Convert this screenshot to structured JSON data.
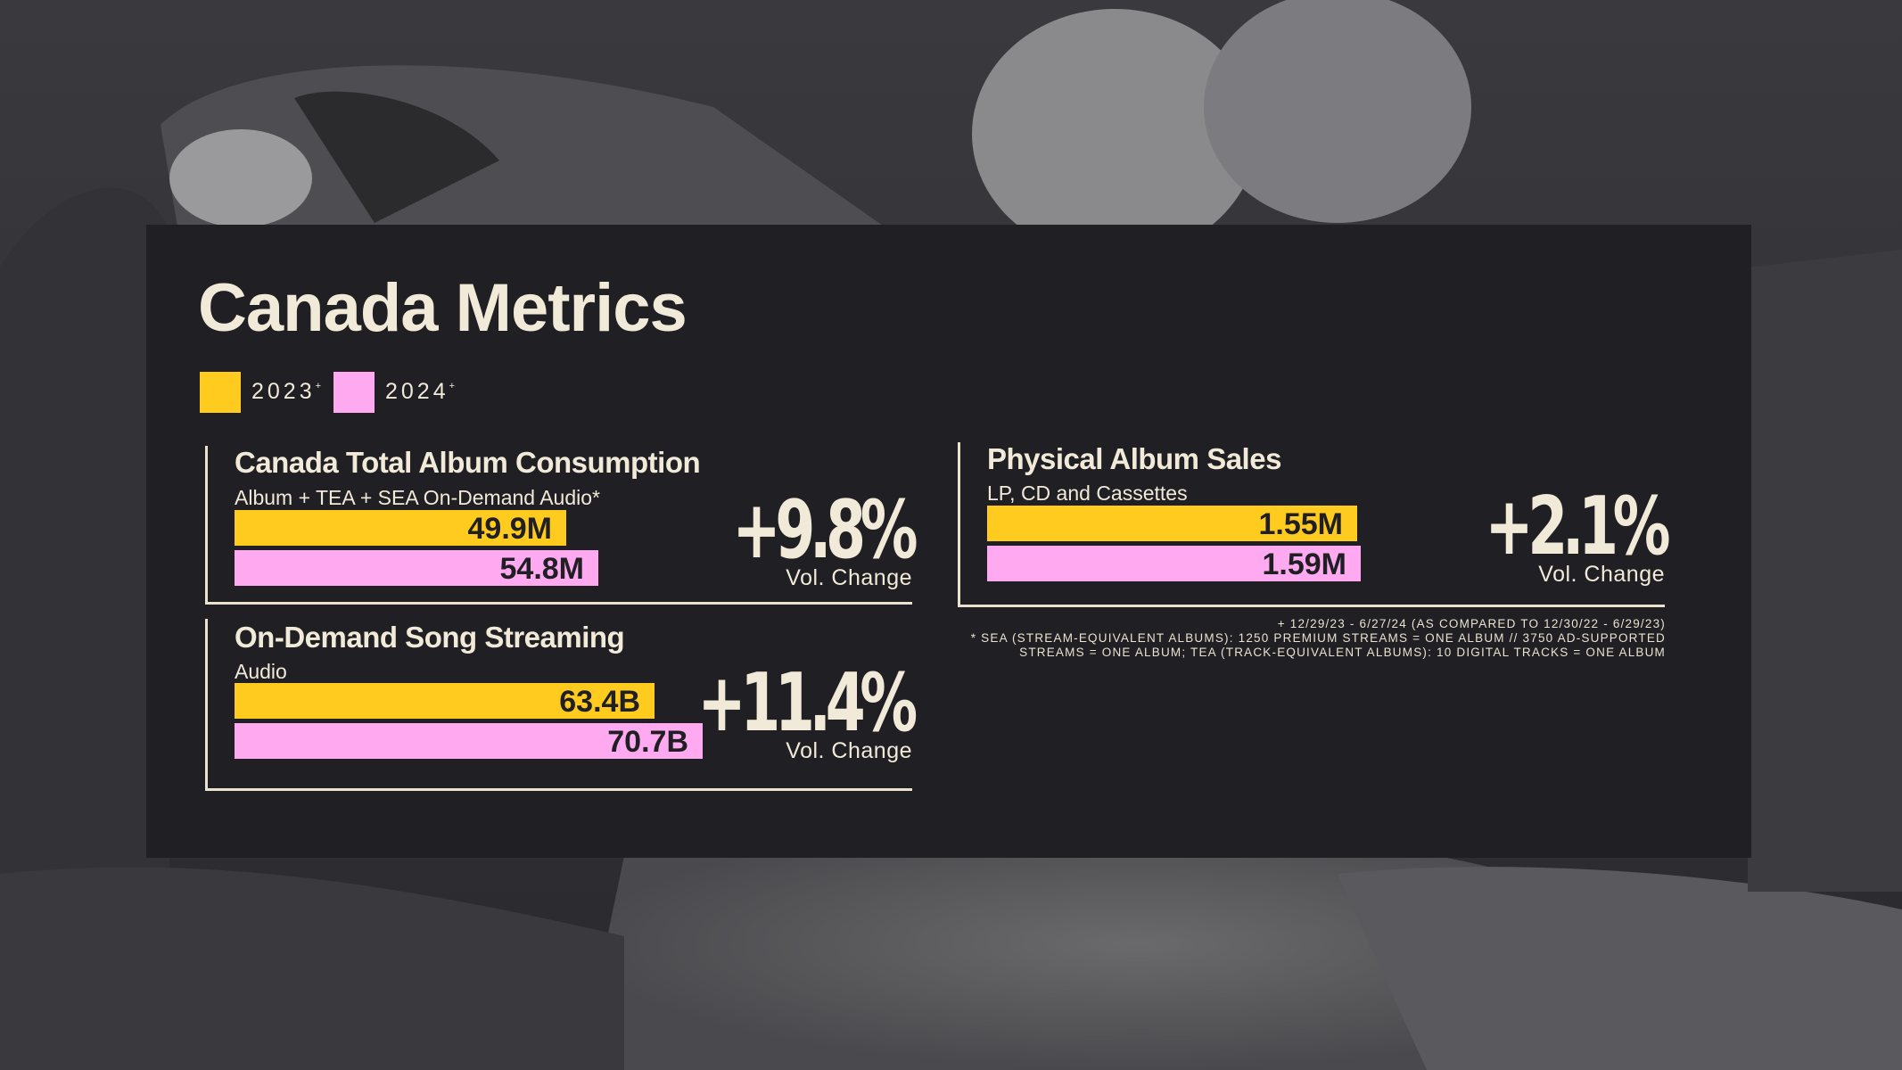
{
  "title": "Canada Metrics",
  "colors": {
    "y2023": "#ffcb1f",
    "y2024": "#ffaaf0",
    "panel": "#1f1f24",
    "text": "#f2ead8"
  },
  "legend": [
    {
      "label": "2023",
      "mark": "+"
    },
    {
      "label": "2024",
      "mark": "+"
    }
  ],
  "metrics": [
    {
      "title": "Canada Total Album Consumption",
      "subtitle": "Album + TEA + SEA On-Demand Audio*",
      "bar_2023_label": "49.9M",
      "bar_2024_label": "54.8M",
      "change": "+9.8%",
      "change_label": "Vol. Change"
    },
    {
      "title": "On-Demand Song Streaming",
      "subtitle": "Audio",
      "bar_2023_label": "63.4B",
      "bar_2024_label": "70.7B",
      "change": "+11.4%",
      "change_label": "Vol. Change"
    },
    {
      "title": "Physical Album Sales",
      "subtitle": "LP, CD and Cassettes",
      "bar_2023_label": "1.55M",
      "bar_2024_label": "1.59M",
      "change": "+2.1%",
      "change_label": "Vol. Change"
    }
  ],
  "footnotes": [
    "+ 12/29/23 - 6/27/24 (AS COMPARED TO 12/30/22 - 6/29/23)",
    "* SEA (STREAM-EQUIVALENT ALBUMS): 1250 PREMIUM STREAMS = ONE ALBUM // 3750 AD-SUPPORTED",
    "STREAMS = ONE ALBUM; TEA (TRACK-EQUIVALENT ALBUMS): 10 DIGITAL TRACKS = ONE ALBUM"
  ],
  "chart_data": [
    {
      "type": "bar",
      "title": "Canada Total Album Consumption",
      "subtitle": "Album + TEA + SEA On-Demand Audio*",
      "categories": [
        "2023",
        "2024"
      ],
      "values": [
        49.9,
        54.8
      ],
      "unit": "M",
      "change_pct": 9.8
    },
    {
      "type": "bar",
      "title": "On-Demand Song Streaming",
      "subtitle": "Audio",
      "categories": [
        "2023",
        "2024"
      ],
      "values": [
        63.4,
        70.7
      ],
      "unit": "B",
      "change_pct": 11.4
    },
    {
      "type": "bar",
      "title": "Physical Album Sales",
      "subtitle": "LP, CD and Cassettes",
      "categories": [
        "2023",
        "2024"
      ],
      "values": [
        1.55,
        1.59
      ],
      "unit": "M",
      "change_pct": 2.1
    }
  ]
}
